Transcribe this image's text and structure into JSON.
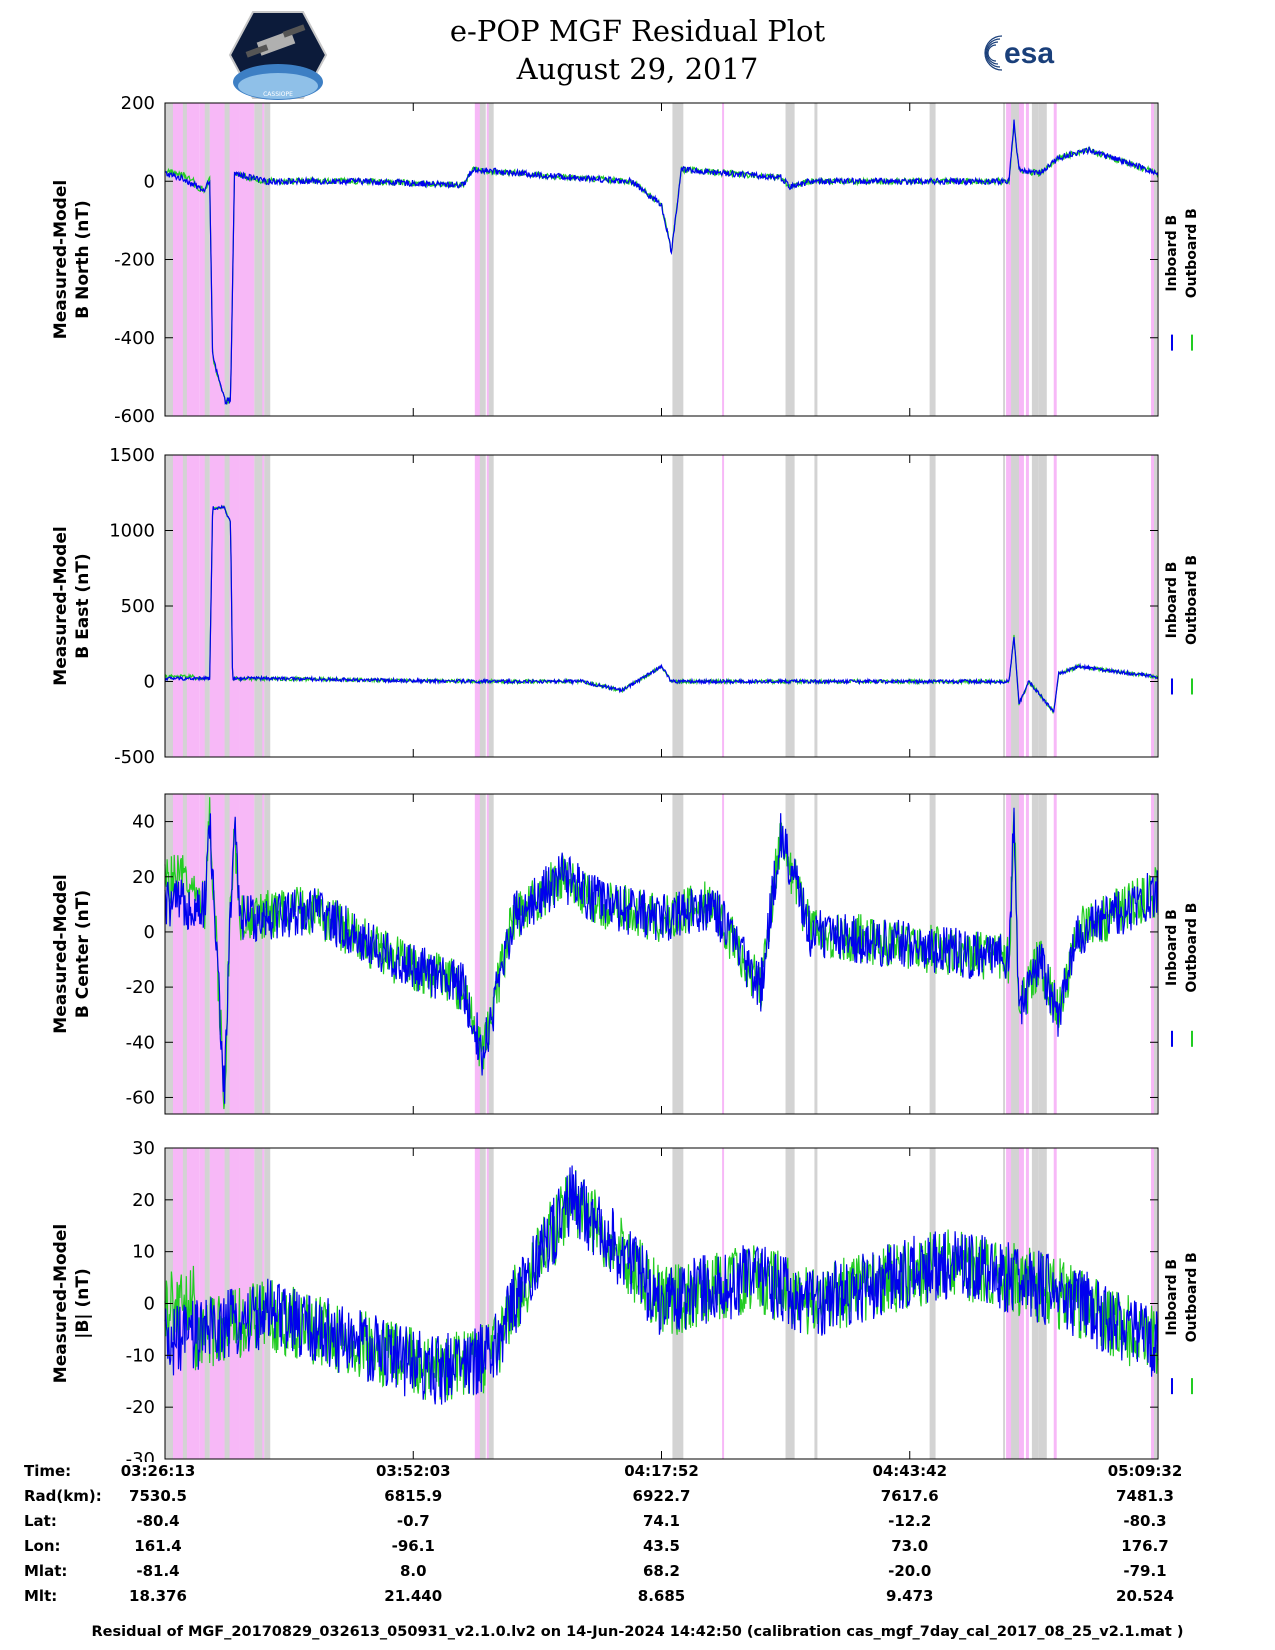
{
  "header": {
    "title_line1": "e-POP MGF Residual Plot",
    "title_line2": "August 29, 2017",
    "logo_left_text": "CASSIOPE",
    "logo_right_text": "esa"
  },
  "colors": {
    "inboard": "#0000ee",
    "outboard": "#22cc22",
    "magenta_band": "#f7b8f7",
    "gray_band": "#d3d3d3"
  },
  "chart_data": [
    {
      "type": "line",
      "title": "",
      "ylabel": "Measured-Model\nB North (nT)",
      "ylim": [
        -600,
        200
      ],
      "yticks": [
        -600,
        -400,
        -200,
        0,
        200
      ],
      "series": [
        {
          "name": "Inboard B"
        },
        {
          "name": "Outboard B"
        }
      ],
      "shape": [
        [
          0,
          20
        ],
        [
          0.02,
          5
        ],
        [
          0.04,
          -25
        ],
        [
          0.045,
          5
        ],
        [
          0.048,
          -450
        ],
        [
          0.06,
          -560
        ],
        [
          0.066,
          -560
        ],
        [
          0.07,
          20
        ],
        [
          0.1,
          0
        ],
        [
          0.2,
          0
        ],
        [
          0.3,
          -10
        ],
        [
          0.31,
          30
        ],
        [
          0.38,
          15
        ],
        [
          0.47,
          0
        ],
        [
          0.5,
          -60
        ],
        [
          0.51,
          -180
        ],
        [
          0.52,
          30
        ],
        [
          0.62,
          10
        ],
        [
          0.63,
          -15
        ],
        [
          0.65,
          0
        ],
        [
          0.85,
          0
        ],
        [
          0.855,
          150
        ],
        [
          0.86,
          30
        ],
        [
          0.88,
          20
        ],
        [
          0.9,
          60
        ],
        [
          0.93,
          80
        ],
        [
          1.0,
          20
        ]
      ],
      "noise": 8
    },
    {
      "type": "line",
      "title": "",
      "ylabel": "Measured-Model\nB East (nT)",
      "ylim": [
        -500,
        1500
      ],
      "yticks": [
        -500,
        0,
        500,
        1000,
        1500
      ],
      "series": [
        {
          "name": "Inboard B"
        },
        {
          "name": "Outboard B"
        }
      ],
      "shape": [
        [
          0,
          20
        ],
        [
          0.045,
          20
        ],
        [
          0.048,
          1150
        ],
        [
          0.06,
          1150
        ],
        [
          0.066,
          1050
        ],
        [
          0.068,
          20
        ],
        [
          0.1,
          20
        ],
        [
          0.2,
          10
        ],
        [
          0.32,
          0
        ],
        [
          0.4,
          0
        ],
        [
          0.42,
          0
        ],
        [
          0.46,
          -60
        ],
        [
          0.5,
          100
        ],
        [
          0.51,
          0
        ],
        [
          0.6,
          0
        ],
        [
          0.85,
          0
        ],
        [
          0.855,
          300
        ],
        [
          0.86,
          -150
        ],
        [
          0.87,
          0
        ],
        [
          0.895,
          -200
        ],
        [
          0.9,
          50
        ],
        [
          0.92,
          100
        ],
        [
          1.0,
          30
        ]
      ],
      "noise": 12
    },
    {
      "type": "line",
      "title": "",
      "ylabel": "Measured-Model\nB Center (nT)",
      "ylim": [
        -66,
        50
      ],
      "yticks": [
        -60,
        -40,
        -20,
        0,
        20,
        40
      ],
      "series": [
        {
          "name": "Inboard B"
        },
        {
          "name": "Outboard B"
        }
      ],
      "shape": [
        [
          0,
          10
        ],
        [
          0.04,
          10
        ],
        [
          0.045,
          40
        ],
        [
          0.06,
          -60
        ],
        [
          0.065,
          0
        ],
        [
          0.07,
          40
        ],
        [
          0.075,
          5
        ],
        [
          0.15,
          8
        ],
        [
          0.23,
          -10
        ],
        [
          0.3,
          -20
        ],
        [
          0.32,
          -45
        ],
        [
          0.35,
          5
        ],
        [
          0.4,
          20
        ],
        [
          0.44,
          10
        ],
        [
          0.5,
          5
        ],
        [
          0.55,
          10
        ],
        [
          0.6,
          -20
        ],
        [
          0.62,
          35
        ],
        [
          0.65,
          0
        ],
        [
          0.75,
          -5
        ],
        [
          0.85,
          -10
        ],
        [
          0.855,
          45
        ],
        [
          0.86,
          -30
        ],
        [
          0.88,
          -10
        ],
        [
          0.9,
          -30
        ],
        [
          0.92,
          0
        ],
        [
          0.95,
          5
        ],
        [
          1.0,
          15
        ]
      ],
      "noise": 9
    },
    {
      "type": "line",
      "title": "",
      "ylabel": "Measured-Model\n|B| (nT)",
      "ylim": [
        -30,
        30
      ],
      "yticks": [
        -30,
        -20,
        -10,
        0,
        10,
        20,
        30
      ],
      "series": [
        {
          "name": "Inboard B"
        },
        {
          "name": "Outboard B"
        }
      ],
      "shape": [
        [
          0,
          -8
        ],
        [
          0.05,
          -5
        ],
        [
          0.1,
          -2
        ],
        [
          0.2,
          -8
        ],
        [
          0.27,
          -13
        ],
        [
          0.33,
          -10
        ],
        [
          0.35,
          0
        ],
        [
          0.38,
          10
        ],
        [
          0.41,
          20
        ],
        [
          0.45,
          12
        ],
        [
          0.48,
          5
        ],
        [
          0.5,
          0
        ],
        [
          0.55,
          3
        ],
        [
          0.6,
          5
        ],
        [
          0.65,
          0
        ],
        [
          0.7,
          3
        ],
        [
          0.75,
          6
        ],
        [
          0.8,
          8
        ],
        [
          0.85,
          5
        ],
        [
          0.9,
          2
        ],
        [
          0.95,
          -3
        ],
        [
          1.0,
          -8
        ]
      ],
      "noise": 7
    }
  ],
  "x_axis": {
    "ticks": [
      0,
      0.25,
      0.5,
      0.75,
      1.0
    ]
  },
  "legend": {
    "inboard_label": "Inboard B",
    "outboard_label": "Outboard B"
  },
  "bands": {
    "magenta": [
      [
        0.0,
        0.035
      ],
      [
        0.035,
        0.045
      ],
      [
        0.045,
        0.075
      ],
      [
        0.075,
        0.09
      ],
      [
        0.095,
        0.1
      ],
      [
        0.312,
        0.318
      ],
      [
        0.324,
        0.327
      ],
      [
        0.561,
        0.563
      ],
      [
        0.847,
        0.852
      ],
      [
        0.855,
        0.865
      ],
      [
        0.867,
        0.87
      ],
      [
        0.895,
        0.898
      ],
      [
        0.993,
        0.996
      ]
    ],
    "gray": [
      [
        0.0,
        0.008
      ],
      [
        0.018,
        0.022
      ],
      [
        0.04,
        0.045
      ],
      [
        0.06,
        0.065
      ],
      [
        0.09,
        0.098
      ],
      [
        0.1,
        0.106
      ],
      [
        0.317,
        0.323
      ],
      [
        0.326,
        0.331
      ],
      [
        0.511,
        0.522
      ],
      [
        0.625,
        0.634
      ],
      [
        0.625,
        0.634
      ],
      [
        0.629,
        0.633
      ],
      [
        0.654,
        0.657
      ],
      [
        0.77,
        0.776
      ],
      [
        0.844,
        0.846
      ],
      [
        0.852,
        0.86
      ],
      [
        0.873,
        0.88
      ],
      [
        0.88,
        0.888
      ],
      [
        0.996,
        0.999
      ]
    ]
  },
  "ephemeris": {
    "rows": [
      {
        "label": "Time:",
        "values": [
          "03:26:13",
          "03:52:03",
          "04:17:52",
          "04:43:42",
          "05:09:32"
        ]
      },
      {
        "label": "Rad(km):",
        "values": [
          "7530.5",
          "6815.9",
          "6922.7",
          "7617.6",
          "7481.3"
        ]
      },
      {
        "label": "Lat:",
        "values": [
          "-80.4",
          "-0.7",
          "74.1",
          "-12.2",
          "-80.3"
        ]
      },
      {
        "label": "Lon:",
        "values": [
          "161.4",
          "-96.1",
          "43.5",
          "73.0",
          "176.7"
        ]
      },
      {
        "label": "Mlat:",
        "values": [
          "-81.4",
          "8.0",
          "68.2",
          "-20.0",
          "-79.1"
        ]
      },
      {
        "label": "Mlt:",
        "values": [
          "18.376",
          "21.440",
          "8.685",
          "9.473",
          "20.524"
        ]
      }
    ]
  },
  "footer": {
    "text": "Residual of MGF_20170829_032613_050931_v2.1.0.lv2 on 14-Jun-2024 14:42:50 (calibration cas_mgf_7day_cal_2017_08_25_v2.1.mat )"
  }
}
